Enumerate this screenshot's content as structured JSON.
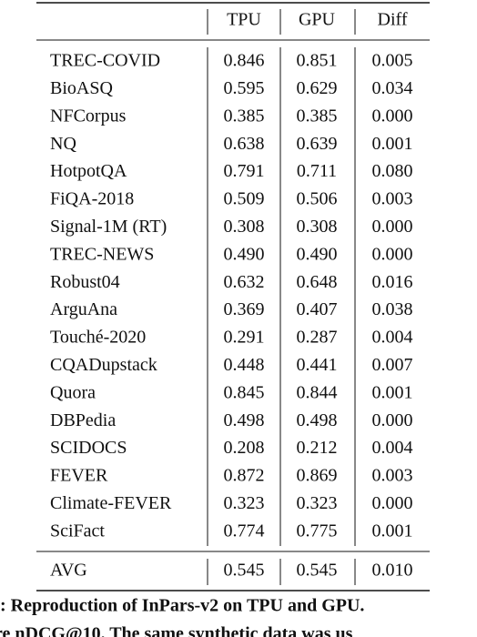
{
  "table": {
    "header": [
      "TPU",
      "GPU",
      "Diff"
    ],
    "rows": [
      [
        "TREC-COVID",
        "0.846",
        "0.851",
        "0.005"
      ],
      [
        "BioASQ",
        "0.595",
        "0.629",
        "0.034"
      ],
      [
        "NFCorpus",
        "0.385",
        "0.385",
        "0.000"
      ],
      [
        "NQ",
        "0.638",
        "0.639",
        "0.001"
      ],
      [
        "HotpotQA",
        "0.791",
        "0.711",
        "0.080"
      ],
      [
        "FiQA-2018",
        "0.509",
        "0.506",
        "0.003"
      ],
      [
        "Signal-1M (RT)",
        "0.308",
        "0.308",
        "0.000"
      ],
      [
        "TREC-NEWS",
        "0.490",
        "0.490",
        "0.000"
      ],
      [
        "Robust04",
        "0.632",
        "0.648",
        "0.016"
      ],
      [
        "ArguAna",
        "0.369",
        "0.407",
        "0.038"
      ],
      [
        "Touché-2020",
        "0.291",
        "0.287",
        "0.004"
      ],
      [
        "CQADupstack",
        "0.448",
        "0.441",
        "0.007"
      ],
      [
        "Quora",
        "0.845",
        "0.844",
        "0.001"
      ],
      [
        "DBPedia",
        "0.498",
        "0.498",
        "0.000"
      ],
      [
        "SCIDOCS",
        "0.208",
        "0.212",
        "0.004"
      ],
      [
        "FEVER",
        "0.872",
        "0.869",
        "0.003"
      ],
      [
        "Climate-FEVER",
        "0.323",
        "0.323",
        "0.000"
      ],
      [
        "SciFact",
        "0.774",
        "0.775",
        "0.001"
      ]
    ],
    "avg": [
      "AVG",
      "0.545",
      "0.545",
      "0.010"
    ]
  },
  "caption": [
    ": Reproduction of InPars-v2 on TPU and GPU.",
    "re nDCG@10. The same synthetic data was us"
  ]
}
